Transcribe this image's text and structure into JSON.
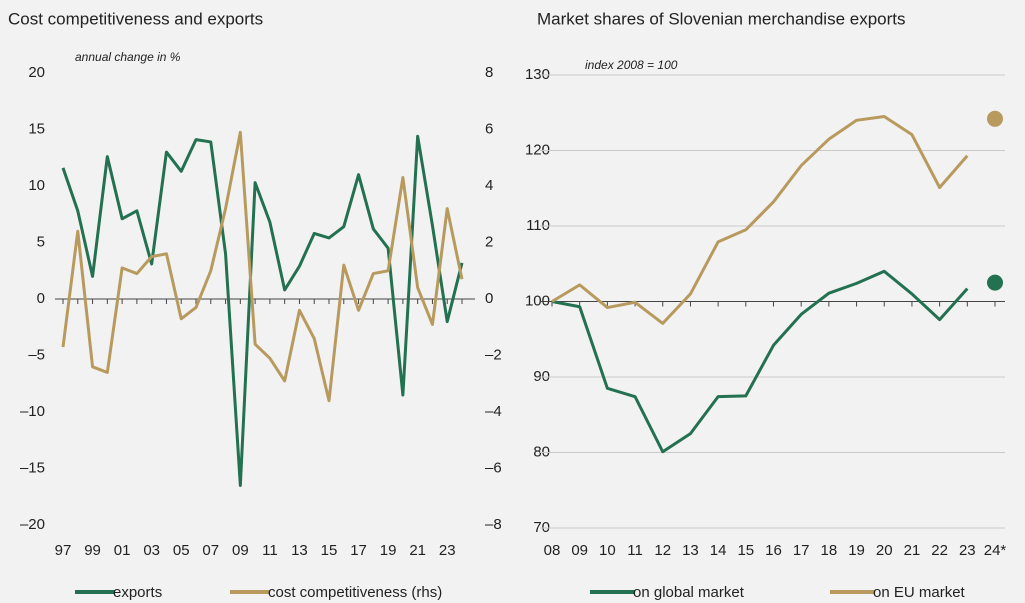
{
  "chart_data": [
    {
      "type": "line",
      "title": "Cost competitiveness and exports",
      "subtitle": "annual change in %",
      "categories": [
        "97",
        null,
        "99",
        null,
        "01",
        null,
        "03",
        null,
        "05",
        null,
        "07",
        null,
        "09",
        null,
        "11",
        null,
        "13",
        null,
        "15",
        null,
        "17",
        null,
        "19",
        null,
        "21",
        null,
        "23",
        null
      ],
      "series": [
        {
          "name": "exports",
          "color": "#237150",
          "values": [
            11.6,
            7.8,
            2.0,
            12.6,
            7.1,
            7.8,
            3.1,
            13.0,
            11.3,
            14.1,
            13.9,
            4.0,
            -16.5,
            10.3,
            6.8,
            0.8,
            2.9,
            5.8,
            5.4,
            6.4,
            11.0,
            6.2,
            4.5,
            -8.5,
            14.4,
            6.5,
            -2.0,
            3.2
          ]
        },
        {
          "name": "cost competitiveness (rhs)",
          "color": "#b89a5e",
          "axis": "y2",
          "values": [
            -1.7,
            2.4,
            -2.4,
            -2.6,
            1.1,
            0.9,
            1.5,
            1.6,
            -0.7,
            -0.3,
            1.0,
            3.2,
            5.9,
            -1.6,
            -2.1,
            -2.9,
            -0.4,
            -1.4,
            -3.6,
            1.2,
            -0.4,
            0.9,
            1.0,
            4.3,
            0.4,
            -0.9,
            3.2,
            0.7
          ]
        }
      ],
      "ylim": [
        -20,
        20
      ],
      "yticks": [
        {
          "value": -20,
          "label": "–20"
        },
        {
          "value": -15,
          "label": "–15"
        },
        {
          "value": -10,
          "label": "–10"
        },
        {
          "value": -5,
          "label": "–5"
        },
        0,
        5,
        10,
        15,
        20
      ],
      "y2lim": [
        -8,
        8
      ],
      "y2ticks": [
        {
          "value": -8,
          "label": "–8"
        },
        {
          "value": -6,
          "label": "–6"
        },
        {
          "value": -4,
          "label": "–4"
        },
        {
          "value": -2,
          "label": "–2"
        },
        0,
        2,
        4,
        6,
        8
      ],
      "baseline": 0,
      "grid": false,
      "highlight_last": false
    },
    {
      "type": "line",
      "title": "Market shares of Slovenian merchandise exports",
      "subtitle": "index 2008 = 100",
      "categories": [
        "08",
        "09",
        "10",
        "11",
        "12",
        "13",
        "14",
        "15",
        "16",
        "17",
        "18",
        "19",
        "20",
        "21",
        "22",
        "23",
        "24*"
      ],
      "series": [
        {
          "name": "on global market",
          "color": "#237150",
          "values": [
            100,
            99.3,
            88.5,
            87.4,
            80.1,
            82.5,
            87.4,
            87.5,
            94.2,
            98.3,
            101.1,
            102.4,
            104.0,
            101.0,
            97.6,
            101.7,
            102.5
          ]
        },
        {
          "name": "on EU market",
          "color": "#b89a5e",
          "values": [
            100,
            102.2,
            99.2,
            99.9,
            97.1,
            101.0,
            107.9,
            109.5,
            113.2,
            118.0,
            121.5,
            124.0,
            124.5,
            122.1,
            115.1,
            119.3,
            124.2
          ]
        }
      ],
      "ylim": [
        70,
        130
      ],
      "yticks": [
        70,
        80,
        90,
        100,
        110,
        120,
        130
      ],
      "baseline": 100,
      "grid": true,
      "highlight_last": true
    }
  ]
}
